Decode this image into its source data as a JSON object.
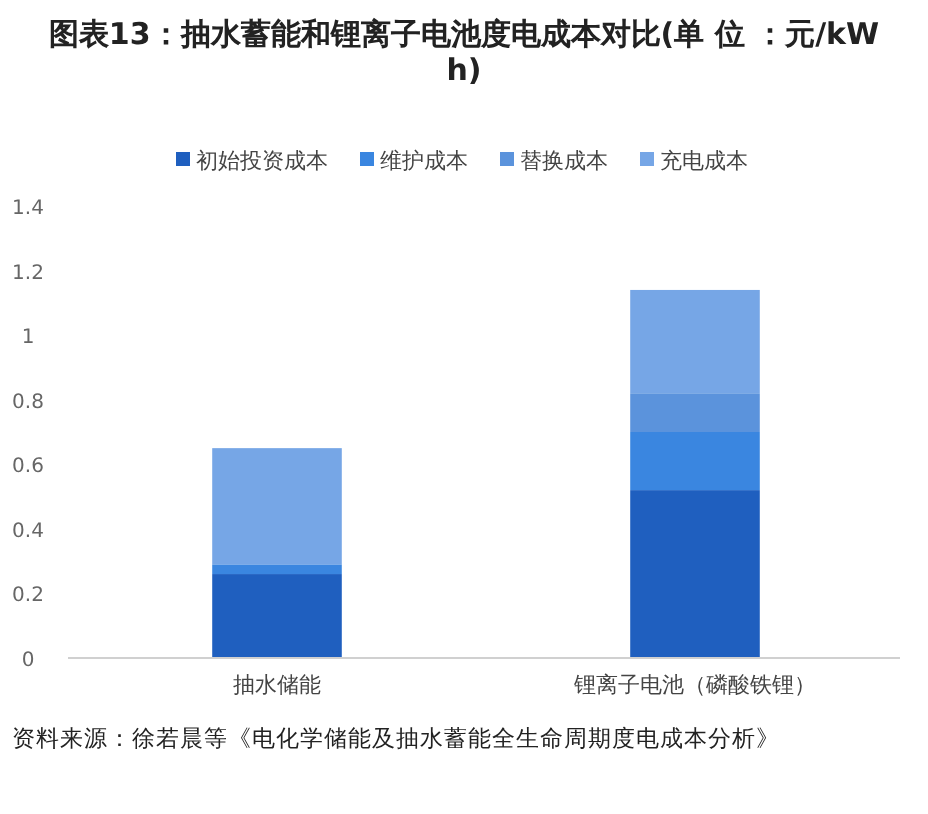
{
  "chart_data": {
    "type": "bar",
    "title": "图表13：抽水蓄能和锂离子电池度电成本对比(单 位 ：元/kWh)",
    "categories": [
      "抽水储能",
      "锂离子电池（磷酸铁锂）"
    ],
    "stacked": true,
    "series": [
      {
        "name": "初始投资成本",
        "color": "#1f5fbf",
        "values": [
          0.26,
          0.52
        ]
      },
      {
        "name": "维护成本",
        "color": "#3a86e0",
        "values": [
          0.03,
          0.18
        ]
      },
      {
        "name": "替换成本",
        "color": "#5b93dc",
        "values": [
          0,
          0.12
        ]
      },
      {
        "name": "充电成本",
        "color": "#76a6e6",
        "values": [
          0.36,
          0.32
        ]
      }
    ],
    "ylim": [
      0,
      1.4
    ],
    "yticks": [
      0,
      0.2,
      0.4,
      0.6,
      0.8,
      1,
      1.2,
      1.4
    ],
    "grid": false,
    "legend": "top",
    "annotations": [
      "资料来源：徐若晨等《电化学储能及抽水蓄能全生命周期度电成本分析》"
    ]
  }
}
